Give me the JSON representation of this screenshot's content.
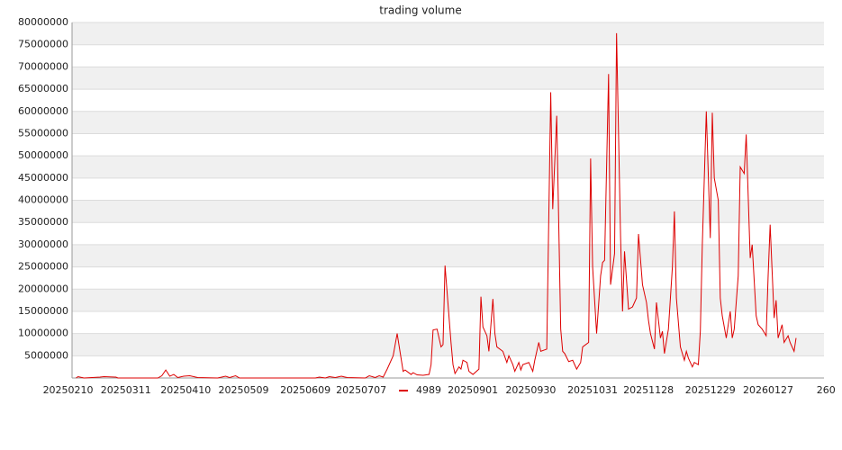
{
  "chart_data": {
    "type": "line",
    "title": "trading volume",
    "x": [
      "20250214",
      "20250215",
      "20250218",
      "20250226",
      "20250228",
      "20250306",
      "20250307",
      "20250327",
      "20250329",
      "20250331",
      "20250402",
      "20250404",
      "20250406",
      "20250409",
      "20250412",
      "20250416",
      "20250426",
      "20250430",
      "20250502",
      "20250505",
      "20250507",
      "20250614",
      "20250616",
      "20250619",
      "20250621",
      "20250624",
      "20250627",
      "20250630",
      "20250709",
      "20250711",
      "20250714",
      "20250716",
      "20250718",
      "20250720",
      "20250723",
      "20250725",
      "20250728",
      "20250729",
      "20250801",
      "20250802",
      "20250804",
      "20250807",
      "20250810",
      "20250811",
      "20250812",
      "20250814",
      "20250816",
      "20250817",
      "20250818",
      "20250821",
      "20250822",
      "20250823",
      "20250825",
      "20250826",
      "20250827",
      "20250829",
      "20250830",
      "20250901",
      "20250904",
      "20250905",
      "20250906",
      "20250908",
      "20250909",
      "20250911",
      "20250912",
      "20250913",
      "20250916",
      "20250918",
      "20250919",
      "20250921",
      "20250922",
      "20250924",
      "20250925",
      "20250926",
      "20250929",
      "20251001",
      "20251002",
      "20251004",
      "20251005",
      "20251008",
      "20251010",
      "20251011",
      "20251013",
      "20251015",
      "20251016",
      "20251017",
      "20251019",
      "20251021",
      "20251023",
      "20251025",
      "20251026",
      "20251029",
      "20251030",
      "20251031",
      "20251102",
      "20251104",
      "20251105",
      "20251106",
      "20251108",
      "20251109",
      "20251111",
      "20251112",
      "20251114",
      "20251115",
      "20251116",
      "20251118",
      "20251120",
      "20251122",
      "20251123",
      "20251125",
      "20251127",
      "20251128",
      "20251129",
      "20251201",
      "20251202",
      "20251204",
      "20251205",
      "20251206",
      "20251208",
      "20251210",
      "20251211",
      "20251212",
      "20251214",
      "20251216",
      "20251217",
      "20251218",
      "20251220",
      "20251221",
      "20251223",
      "20251224",
      "20251225",
      "20251227",
      "20251229",
      "20251230",
      "20251231",
      "20260102",
      "20260103",
      "20260104",
      "20260106",
      "20260108",
      "20260109",
      "20260110",
      "20260112",
      "20260113",
      "20260115",
      "20260116",
      "20260118",
      "20260119",
      "20260121",
      "20260122",
      "20260124",
      "20260126",
      "20260127",
      "20260128",
      "20260130",
      "20260131",
      "20260201",
      "20260203",
      "20260204",
      "20260206",
      "20260207",
      "20260209",
      "20260210"
    ],
    "series": [
      {
        "name": "4989",
        "color": "#dd0000",
        "values": [
          0,
          300000,
          0,
          200000,
          300000,
          200000,
          0,
          0,
          500000,
          1800000,
          400000,
          800000,
          100000,
          400000,
          500000,
          100000,
          0,
          400000,
          100000,
          500000,
          0,
          0,
          200000,
          0,
          300000,
          100000,
          400000,
          100000,
          0,
          500000,
          100000,
          500000,
          200000,
          2000000,
          5000000,
          10000000,
          1500000,
          1800000,
          800000,
          1200000,
          700000,
          600000,
          800000,
          3000000,
          10800000,
          11000000,
          7000000,
          7500000,
          25300000,
          8000000,
          3000000,
          1000000,
          2500000,
          2000000,
          4000000,
          3500000,
          1500000,
          800000,
          2000000,
          18300000,
          11500000,
          9500000,
          6000000,
          17800000,
          10000000,
          7000000,
          6000000,
          3500000,
          5000000,
          3000000,
          1500000,
          3500000,
          1800000,
          3000000,
          3500000,
          1500000,
          4000000,
          8000000,
          6000000,
          6500000,
          64300000,
          38000000,
          59000000,
          11000000,
          6000000,
          5500000,
          3700000,
          4000000,
          2000000,
          3500000,
          7000000,
          8000000,
          49400000,
          25000000,
          10000000,
          23000000,
          26000000,
          26500000,
          68400000,
          21000000,
          28000000,
          77600000,
          32000000,
          15000000,
          28500000,
          15500000,
          16000000,
          18000000,
          32400000,
          21000000,
          17000000,
          13000000,
          10000000,
          6500000,
          17000000,
          9000000,
          10500000,
          5500000,
          11000000,
          25000000,
          37500000,
          18000000,
          7000000,
          4000000,
          6000000,
          4500000,
          2500000,
          3500000,
          3000000,
          10500000,
          30000000,
          60000000,
          31500000,
          59700000,
          45000000,
          40000000,
          18000000,
          14000000,
          9000000,
          15000000,
          9000000,
          11000000,
          23000000,
          47500000,
          46000000,
          54800000,
          27000000,
          30000000,
          14000000,
          12000000,
          11000000,
          9500000,
          23000000,
          34500000,
          13500000,
          17500000,
          9000000,
          12000000,
          8000000,
          9500000,
          8000000,
          6000000,
          9000000
        ]
      }
    ],
    "xlim": [
      "20250212",
      "20260224"
    ],
    "xticks": [
      "20250210",
      "20250311",
      "20250410",
      "20250509",
      "20250609",
      "20250707",
      "20250901",
      "20250930",
      "20251031",
      "20251128",
      "20251229",
      "20260127",
      {
        "value": "20260225",
        "label": "260"
      }
    ],
    "ylim": [
      0,
      80000000
    ],
    "yticks": [
      5000000,
      10000000,
      15000000,
      20000000,
      25000000,
      30000000,
      35000000,
      40000000,
      45000000,
      50000000,
      55000000,
      60000000,
      65000000,
      70000000,
      75000000,
      80000000
    ],
    "grid": true,
    "legend": "bottom"
  }
}
